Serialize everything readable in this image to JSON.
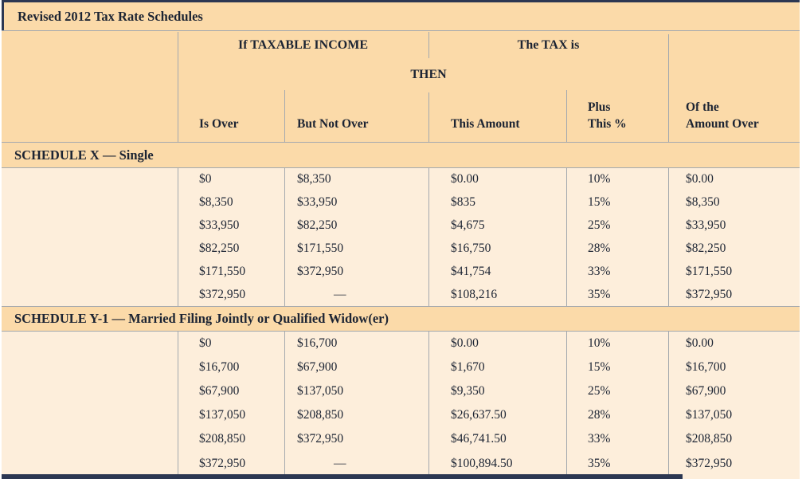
{
  "title": "Revised 2012 Tax Rate Schedules",
  "header": {
    "group_taxable_income": "If TAXABLE INCOME",
    "group_tax_is": "The TAX is",
    "then_label": "THEN",
    "columns": {
      "is_over": "Is Over",
      "but_not_over": "But Not Over",
      "this_amount": "This Amount",
      "plus_line1": "Plus",
      "plus_line2": "This %",
      "over_line1": "Of the",
      "over_line2": "Amount Over"
    }
  },
  "schedules": [
    {
      "label": "SCHEDULE X — Single",
      "rows": [
        {
          "is_over": "$0",
          "but_not_over": "$8,350",
          "this_amount": "$0.00",
          "plus_pct": "10%",
          "amount_over": "$0.00"
        },
        {
          "is_over": "$8,350",
          "but_not_over": "$33,950",
          "this_amount": "$835",
          "plus_pct": "15%",
          "amount_over": "$8,350"
        },
        {
          "is_over": "$33,950",
          "but_not_over": "$82,250",
          "this_amount": "$4,675",
          "plus_pct": "25%",
          "amount_over": "$33,950"
        },
        {
          "is_over": "$82,250",
          "but_not_over": "$171,550",
          "this_amount": "$16,750",
          "plus_pct": "28%",
          "amount_over": "$82,250"
        },
        {
          "is_over": "$171,550",
          "but_not_over": "$372,950",
          "this_amount": "$41,754",
          "plus_pct": "33%",
          "amount_over": "$171,550"
        },
        {
          "is_over": "$372,950",
          "but_not_over": "—",
          "this_amount": "$108,216",
          "plus_pct": "35%",
          "amount_over": "$372,950"
        }
      ]
    },
    {
      "label": "SCHEDULE Y-1 — Married Filing Jointly or Qualified Widow(er)",
      "rows": [
        {
          "is_over": "$0",
          "but_not_over": "$16,700",
          "this_amount": "$0.00",
          "plus_pct": "10%",
          "amount_over": "$0.00"
        },
        {
          "is_over": "$16,700",
          "but_not_over": "$67,900",
          "this_amount": "$1,670",
          "plus_pct": "15%",
          "amount_over": "$16,700"
        },
        {
          "is_over": "$67,900",
          "but_not_over": "$137,050",
          "this_amount": "$9,350",
          "plus_pct": "25%",
          "amount_over": "$67,900"
        },
        {
          "is_over": "$137,050",
          "but_not_over": "$208,850",
          "this_amount": "$26,637.50",
          "plus_pct": "28%",
          "amount_over": "$137,050"
        },
        {
          "is_over": "$208,850",
          "but_not_over": "$372,950",
          "this_amount": "$46,741.50",
          "plus_pct": "33%",
          "amount_over": "$208,850"
        },
        {
          "is_over": "$372,950",
          "but_not_over": "—",
          "this_amount": "$100,894.50",
          "plus_pct": "35%",
          "amount_over": "$372,950"
        }
      ]
    }
  ],
  "colors": {
    "band": "#fbdaa9",
    "body": "#fdeedb",
    "line": "#a4a9ae",
    "ink": "#1c2433",
    "frame": "#2c3752"
  }
}
